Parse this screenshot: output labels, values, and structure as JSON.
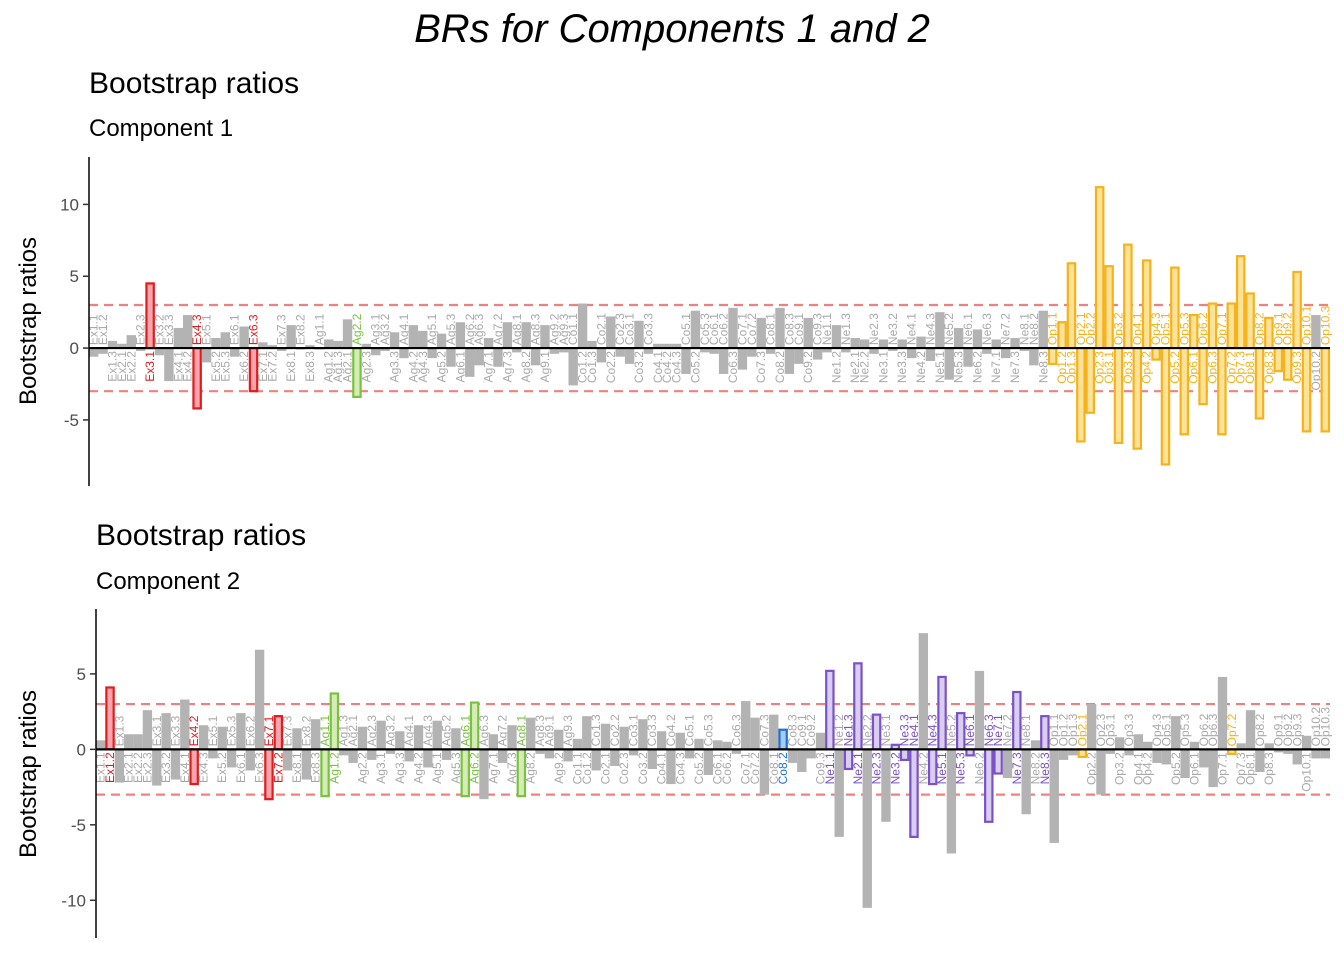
{
  "chart_title": "BRs for Components 1 and 2",
  "colors": {
    "insignificant": "#b3b3b3",
    "insignificant_label": "#a9a9a9",
    "threshold_line": "#f08080",
    "groups": {
      "Ex": {
        "fill": "#f7a6ae",
        "stroke": "#e31a1c"
      },
      "Ag": {
        "fill": "#d5ecb4",
        "stroke": "#7ac143"
      },
      "Co": {
        "fill": "#a7cdf2",
        "stroke": "#1e6fd9"
      },
      "Ne": {
        "fill": "#d9cdf0",
        "stroke": "#7b52c6"
      },
      "Op": {
        "fill": "#fde39a",
        "stroke": "#f5b21b"
      }
    }
  },
  "chart_data": [
    {
      "type": "bar",
      "title": "Bootstrap ratios",
      "subtitle": "Component 1",
      "ylabel": "Bootstrap ratios",
      "xlabel": "",
      "ylim": [
        -9.6,
        13.3
      ],
      "yticks": [
        -5,
        0,
        5,
        10
      ],
      "thresholds": [
        3,
        -3
      ],
      "grid": false,
      "categories": [
        "Ex1.1",
        "Ex1.2",
        "Ex1.3",
        "Ex2.1",
        "Ex2.2",
        "Ex2.3",
        "Ex3.1",
        "Ex3.2",
        "Ex3.3",
        "Ex4.1",
        "Ex4.2",
        "Ex4.3",
        "Ex5.1",
        "Ex5.2",
        "Ex5.3",
        "Ex6.1",
        "Ex6.2",
        "Ex6.3",
        "Ex7.1",
        "Ex7.2",
        "Ex7.3",
        "Ex8.1",
        "Ex8.2",
        "Ex8.3",
        "Ag1.1",
        "Ag1.2",
        "Ag1.3",
        "Ag2.1",
        "Ag2.2",
        "Ag2.3",
        "Ag3.1",
        "Ag3.2",
        "Ag3.3",
        "Ag4.1",
        "Ag4.2",
        "Ag4.3",
        "Ag5.1",
        "Ag5.2",
        "Ag5.3",
        "Ag6.1",
        "Ag6.2",
        "Ag6.3",
        "Ag7.1",
        "Ag7.2",
        "Ag7.3",
        "Ag8.1",
        "Ag8.2",
        "Ag8.3",
        "Ag9.1",
        "Ag9.2",
        "Ag9.3",
        "Co1.1",
        "Co1.2",
        "Co1.3",
        "Co2.1",
        "Co2.2",
        "Co2.3",
        "Co3.1",
        "Co3.2",
        "Co3.3",
        "Co4.1",
        "Co4.2",
        "Co4.3",
        "Co5.1",
        "Co5.2",
        "Co5.3",
        "Co6.1",
        "Co6.2",
        "Co6.3",
        "Co7.1",
        "Co7.2",
        "Co7.3",
        "Co8.1",
        "Co8.2",
        "Co8.3",
        "Co9.1",
        "Co9.2",
        "Co9.3",
        "Ne1.1",
        "Ne1.2",
        "Ne1.3",
        "Ne2.1",
        "Ne2.2",
        "Ne2.3",
        "Ne3.1",
        "Ne3.2",
        "Ne3.3",
        "Ne4.1",
        "Ne4.2",
        "Ne4.3",
        "Ne5.1",
        "Ne5.2",
        "Ne5.3",
        "Ne6.1",
        "Ne6.2",
        "Ne6.3",
        "Ne7.1",
        "Ne7.2",
        "Ne7.3",
        "Ne8.1",
        "Ne8.2",
        "Ne8.3",
        "Op1.1",
        "Op1.2",
        "Op1.3",
        "Op2.1",
        "Op2.2",
        "Op2.3",
        "Op3.1",
        "Op3.2",
        "Op3.3",
        "Op4.1",
        "Op4.2",
        "Op4.3",
        "Op5.1",
        "Op5.2",
        "Op5.3",
        "Op6.1",
        "Op6.2",
        "Op6.3",
        "Op7.1",
        "Op7.2",
        "Op7.3",
        "Op8.1",
        "Op8.2",
        "Op8.3",
        "Op9.1",
        "Op9.2",
        "Op9.3",
        "Op10.1",
        "Op10.2",
        "Op10.3"
      ],
      "values": [
        -0.6,
        -0.4,
        0.5,
        0.3,
        0.9,
        -0.2,
        4.5,
        -0.5,
        -2.3,
        1.4,
        2.3,
        -4.2,
        -1.0,
        0.7,
        1.1,
        -0.6,
        1.5,
        -3.0,
        0.4,
        0.2,
        -0.2,
        1.6,
        -0.1,
        0.2,
        -0.1,
        0.6,
        0.5,
        2.0,
        -3.4,
        0.3,
        -0.5,
        -0.2,
        1.1,
        -0.7,
        1.6,
        1.2,
        -0.7,
        1.0,
        -1.3,
        1.8,
        -2.0,
        -1.2,
        0.7,
        -1.3,
        1.8,
        -0.3,
        1.8,
        -1.2,
        1.6,
        -0.4,
        -0.3,
        -2.6,
        3.1,
        0.5,
        -1.0,
        2.2,
        -0.6,
        -1.1,
        1.9,
        -0.4,
        0.3,
        0.3,
        0.3,
        -1.8,
        2.6,
        -0.3,
        -0.4,
        -1.8,
        2.8,
        -1.5,
        -0.6,
        2.1,
        -0.4,
        2.8,
        -1.8,
        -1.1,
        2.1,
        -0.8,
        -0.3,
        1.6,
        -0.3,
        0.7,
        0.6,
        -0.4,
        0.6,
        -0.2,
        0.6,
        -0.7,
        0.8,
        -0.9,
        2.5,
        -2.2,
        1.4,
        -1.3,
        1.3,
        -0.4,
        0.6,
        -0.7,
        0.7,
        -0.2,
        -1.2,
        2.6,
        -1.1,
        1.8,
        5.9,
        -6.5,
        -4.5,
        11.2,
        5.7,
        -6.6,
        7.2,
        -7.0,
        6.1,
        -0.8,
        -8.1,
        5.6,
        -6.0,
        2.3,
        -3.9,
        3.1,
        -6.0,
        3.1,
        6.4,
        3.8,
        -4.9,
        2.1,
        -1.6,
        -2.2,
        5.3,
        -5.8,
        2.3,
        -5.8
      ],
      "significant": [
        "Ex3.1",
        "Ex4.3",
        "Ex6.3",
        "Ag2.2",
        "Op1.1",
        "Op1.2",
        "Op1.3",
        "Op2.1",
        "Op2.2",
        "Op2.3",
        "Op3.1",
        "Op3.2",
        "Op3.3",
        "Op4.1",
        "Op4.2",
        "Op4.3",
        "Op5.1",
        "Op5.2",
        "Op5.3",
        "Op6.1",
        "Op6.2",
        "Op6.3",
        "Op7.1",
        "Op7.2",
        "Op7.3",
        "Op8.1",
        "Op8.2",
        "Op8.3",
        "Op9.1",
        "Op9.2",
        "Op9.3",
        "Op10.1",
        "Op10.3"
      ]
    },
    {
      "type": "bar",
      "title": "Bootstrap ratios",
      "subtitle": "Component 2",
      "ylabel": "Bootstrap ratios",
      "xlabel": "",
      "ylim": [
        -12.5,
        9.3
      ],
      "yticks": [
        -10,
        -5,
        0,
        5
      ],
      "thresholds": [
        3,
        -3
      ],
      "grid": false,
      "categories": [
        "Ex1.1",
        "Ex1.2",
        "Ex1.3",
        "Ex2.1",
        "Ex2.2",
        "Ex2.3",
        "Ex3.1",
        "Ex3.2",
        "Ex3.3",
        "Ex4.1",
        "Ex4.2",
        "Ex4.3",
        "Ex5.1",
        "Ex5.2",
        "Ex5.3",
        "Ex6.1",
        "Ex6.2",
        "Ex6.3",
        "Ex7.1",
        "Ex7.2",
        "Ex7.3",
        "Ex8.1",
        "Ex8.2",
        "Ex8.3",
        "Ag1.1",
        "Ag1.2",
        "Ag1.3",
        "Ag2.1",
        "Ag2.2",
        "Ag2.3",
        "Ag3.1",
        "Ag3.2",
        "Ag3.3",
        "Ag4.1",
        "Ag4.2",
        "Ag4.3",
        "Ag5.1",
        "Ag5.2",
        "Ag5.3",
        "Ag6.1",
        "Ag6.2",
        "Ag6.3",
        "Ag7.1",
        "Ag7.2",
        "Ag7.3",
        "Ag8.1",
        "Ag8.2",
        "Ag8.3",
        "Ag9.1",
        "Ag9.2",
        "Ag9.3",
        "Co1.1",
        "Co1.2",
        "Co1.3",
        "Co2.1",
        "Co2.2",
        "Co2.3",
        "Co3.1",
        "Co3.2",
        "Co3.3",
        "Co4.1",
        "Co4.2",
        "Co4.3",
        "Co5.1",
        "Co5.2",
        "Co5.3",
        "Co6.1",
        "Co6.2",
        "Co6.3",
        "Co7.1",
        "Co7.2",
        "Co7.3",
        "Co8.1",
        "Co8.2",
        "Co8.3",
        "Co9.1",
        "Co9.2",
        "Co9.3",
        "Ne1.1",
        "Ne1.2",
        "Ne1.3",
        "Ne2.1",
        "Ne2.2",
        "Ne2.3",
        "Ne3.1",
        "Ne3.2",
        "Ne3.3",
        "Ne4.1",
        "Ne4.2",
        "Ne4.3",
        "Ne5.1",
        "Ne5.2",
        "Ne5.3",
        "Ne6.1",
        "Ne6.2",
        "Ne6.3",
        "Ne7.1",
        "Ne7.2",
        "Ne7.3",
        "Ne8.1",
        "Ne8.2",
        "Ne8.3",
        "Op1.1",
        "Op1.2",
        "Op1.3",
        "Op2.1",
        "Op2.2",
        "Op2.3",
        "Op3.1",
        "Op3.2",
        "Op3.3",
        "Op4.1",
        "Op4.2",
        "Op4.3",
        "Op5.1",
        "Op5.2",
        "Op5.3",
        "Op6.1",
        "Op6.2",
        "Op6.3",
        "Op7.1",
        "Op7.2",
        "Op7.3",
        "Op8.1",
        "Op8.2",
        "Op8.3",
        "Op9.1",
        "Op9.2",
        "Op9.3",
        "Op10.1",
        "Op10.2",
        "Op10.3"
      ],
      "values": [
        0.6,
        4.1,
        -2.2,
        1.0,
        1.0,
        2.6,
        -2.4,
        2.4,
        -2.0,
        3.3,
        -2.3,
        1.6,
        -0.6,
        1.5,
        -1.2,
        2.4,
        -1.4,
        6.6,
        -3.3,
        2.2,
        -1.4,
        1.4,
        -2.0,
        2.0,
        -3.1,
        3.7,
        -0.4,
        -0.9,
        1.5,
        -0.7,
        1.9,
        -0.3,
        1.2,
        -0.8,
        1.6,
        -1.2,
        1.9,
        -0.7,
        1.4,
        -3.1,
        3.1,
        -3.3,
        1.0,
        -0.9,
        1.6,
        -3.1,
        2.1,
        -0.3,
        -0.6,
        1.3,
        -0.8,
        0.7,
        2.2,
        -1.4,
        1.7,
        -1.1,
        1.5,
        -0.4,
        2.0,
        -1.3,
        1.2,
        -2.3,
        1.1,
        -0.6,
        0.7,
        -1.7,
        0.6,
        0.5,
        -0.3,
        3.2,
        2.1,
        -3.0,
        2.3,
        1.3,
        -0.9,
        -1.5,
        -0.6,
        1.1,
        5.2,
        -5.8,
        -1.3,
        5.7,
        -10.5,
        2.3,
        -4.8,
        0.3,
        -0.7,
        -5.8,
        7.7,
        -2.3,
        4.8,
        -6.9,
        2.4,
        -0.4,
        5.2,
        -4.8,
        -1.6,
        -1.9,
        3.8,
        -4.3,
        0.6,
        2.2,
        -6.2,
        -0.7,
        -0.4,
        -0.5,
        3.0,
        -3.0,
        -0.3,
        0.8,
        -0.4,
        1.0,
        0.5,
        -0.9,
        -1.0,
        2.2,
        -1.9,
        0.5,
        -1.2,
        -2.5,
        4.8,
        -0.3,
        0.4,
        2.6,
        -1.5,
        0.4,
        -0.2,
        -0.3,
        -1.0,
        0.9,
        -0.6,
        -0.6
      ],
      "significant": [
        "Ex1.2",
        "Ex4.2",
        "Ex7.1",
        "Ex7.2",
        "Ag1.1",
        "Ag1.2",
        "Ag6.1",
        "Ag6.2",
        "Ag8.1",
        "Co8.2",
        "Ne1.1",
        "Ne1.3",
        "Ne2.1",
        "Ne2.3",
        "Ne3.2",
        "Ne3.3",
        "Ne4.1",
        "Ne4.3",
        "Ne5.1",
        "Ne5.3",
        "Ne6.1",
        "Ne6.3",
        "Ne7.1",
        "Ne7.3",
        "Ne8.3",
        "Op2.1",
        "Op7.2"
      ]
    }
  ]
}
